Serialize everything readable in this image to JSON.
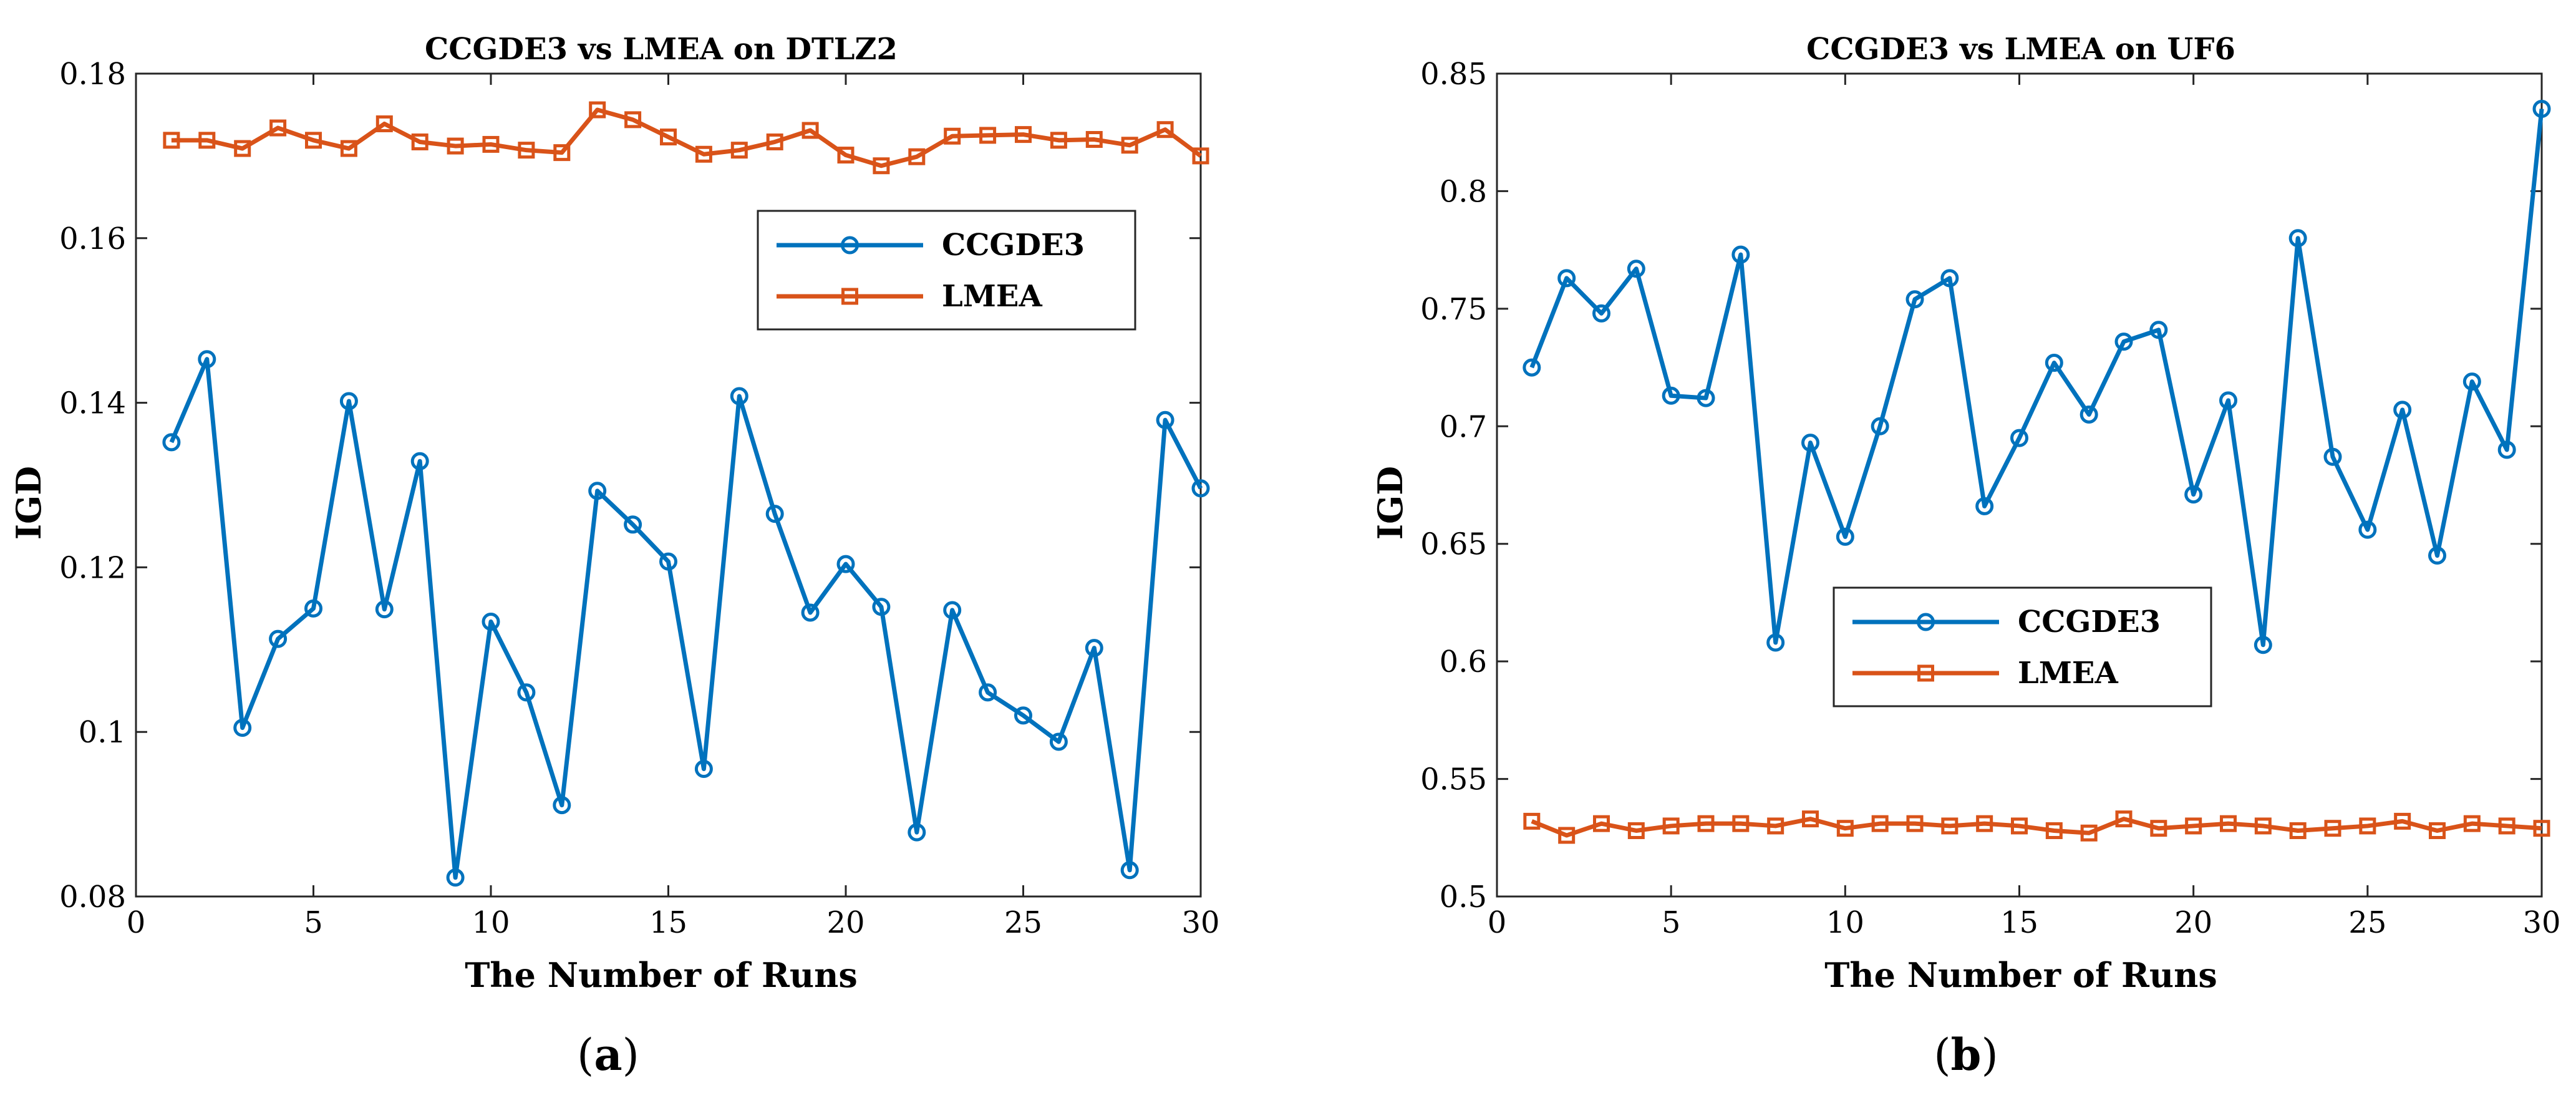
{
  "captions": [
    "a",
    "b"
  ],
  "colors": {
    "ccgde3": "#0072BD",
    "lmea": "#D95319"
  },
  "chart_data": [
    {
      "type": "line",
      "title": "CCGDE3 vs LMEA on DTLZ2",
      "xlabel": "The Number of Runs",
      "ylabel": "IGD",
      "xlim": [
        0,
        30
      ],
      "ylim": [
        0.08,
        0.18
      ],
      "xticks": [
        0,
        5,
        10,
        15,
        20,
        25,
        30
      ],
      "xtick_labels": [
        "0",
        "5",
        "10",
        "15",
        "20",
        "25",
        "30"
      ],
      "yticks": [
        0.08,
        0.1,
        0.12,
        0.14,
        0.16,
        0.18
      ],
      "ytick_labels": [
        "0.08",
        "0.1",
        "0.12",
        "0.14",
        "0.16",
        "0.18"
      ],
      "grid": false,
      "legend_position": "upper-right",
      "x": [
        1,
        2,
        3,
        4,
        5,
        6,
        7,
        8,
        9,
        10,
        11,
        12,
        13,
        14,
        15,
        16,
        17,
        18,
        19,
        20,
        21,
        22,
        23,
        24,
        25,
        26,
        27,
        28,
        29,
        30
      ],
      "series": [
        {
          "name": "CCGDE3",
          "marker": "circle",
          "color": "#0072BD",
          "values": [
            0.1352,
            0.1453,
            0.1005,
            0.1113,
            0.115,
            0.1402,
            0.1149,
            0.1329,
            0.0823,
            0.1134,
            0.1048,
            0.0911,
            0.1293,
            0.1252,
            0.1207,
            0.0955,
            0.1408,
            0.1265,
            0.1145,
            0.1204,
            0.1152,
            0.0878,
            0.1148,
            0.1048,
            0.102,
            0.0988,
            0.1102,
            0.0832,
            0.1379,
            0.1296
          ]
        },
        {
          "name": "LMEA",
          "marker": "square",
          "color": "#D95319",
          "values": [
            0.1719,
            0.1719,
            0.1709,
            0.1734,
            0.1719,
            0.1709,
            0.1739,
            0.1717,
            0.1712,
            0.1714,
            0.1707,
            0.1704,
            0.1756,
            0.1744,
            0.1723,
            0.1702,
            0.1707,
            0.1717,
            0.1731,
            0.1701,
            0.1688,
            0.1699,
            0.1724,
            0.1725,
            0.1726,
            0.1719,
            0.172,
            0.1713,
            0.1732,
            0.17
          ]
        }
      ]
    },
    {
      "type": "line",
      "title": "CCGDE3 vs LMEA on UF6",
      "xlabel": "The Number of Runs",
      "ylabel": "IGD",
      "xlim": [
        0,
        30
      ],
      "ylim": [
        0.5,
        0.85
      ],
      "xticks": [
        0,
        5,
        10,
        15,
        20,
        25,
        30
      ],
      "xtick_labels": [
        "0",
        "5",
        "10",
        "15",
        "20",
        "25",
        "30"
      ],
      "yticks": [
        0.5,
        0.55,
        0.6,
        0.65,
        0.7,
        0.75,
        0.8,
        0.85
      ],
      "ytick_labels": [
        "0.5",
        "0.55",
        "0.6",
        "0.65",
        "0.7",
        "0.75",
        "0.8",
        "0.85"
      ],
      "grid": false,
      "legend_position": "center-left",
      "x": [
        1,
        2,
        3,
        4,
        5,
        6,
        7,
        8,
        9,
        10,
        11,
        12,
        13,
        14,
        15,
        16,
        17,
        18,
        19,
        20,
        21,
        22,
        23,
        24,
        25,
        26,
        27,
        28,
        29,
        30
      ],
      "series": [
        {
          "name": "CCGDE3",
          "marker": "circle",
          "color": "#0072BD",
          "values": [
            0.725,
            0.763,
            0.748,
            0.767,
            0.713,
            0.712,
            0.773,
            0.608,
            0.693,
            0.653,
            0.7,
            0.754,
            0.763,
            0.666,
            0.695,
            0.727,
            0.705,
            0.736,
            0.741,
            0.671,
            0.711,
            0.607,
            0.78,
            0.687,
            0.656,
            0.707,
            0.645,
            0.719,
            0.69,
            0.835
          ]
        },
        {
          "name": "LMEA",
          "marker": "square",
          "color": "#D95319",
          "values": [
            0.532,
            0.526,
            0.531,
            0.528,
            0.53,
            0.531,
            0.531,
            0.53,
            0.533,
            0.529,
            0.531,
            0.531,
            0.53,
            0.531,
            0.53,
            0.528,
            0.527,
            0.533,
            0.529,
            0.53,
            0.531,
            0.53,
            0.528,
            0.529,
            0.53,
            0.532,
            0.528,
            0.531,
            0.53,
            0.529
          ]
        }
      ]
    }
  ]
}
